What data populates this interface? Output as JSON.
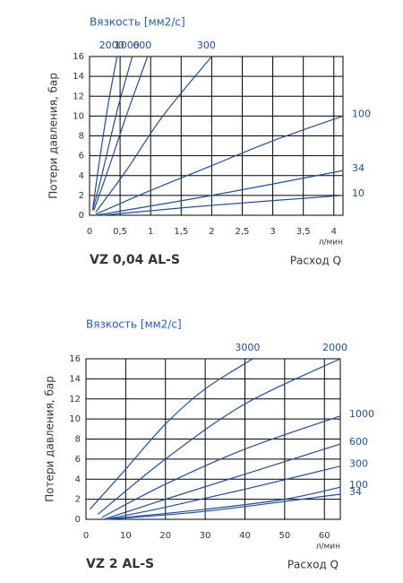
{
  "chart_data": [
    {
      "type": "line",
      "subtitle": "Вязкость [мм2/с]",
      "title": "VZ 0,04 AL-S",
      "y_label": "Потери  давления, бар",
      "x_label": "Расход Q",
      "x_unit": "л/мин",
      "xlim": [
        0,
        4.15
      ],
      "ylim": [
        0,
        16
      ],
      "grid": true,
      "xticks": [
        0,
        {
          "value": 0.5,
          "label": "0,5"
        },
        1,
        {
          "value": 1.5,
          "label": "1,5"
        },
        2,
        {
          "value": 2.5,
          "label": "2,5"
        },
        3,
        {
          "value": 3.5,
          "label": "3,5"
        },
        4
      ],
      "yticks": [
        0,
        2,
        4,
        6,
        8,
        10,
        12,
        14,
        16
      ],
      "series": [
        {
          "name": "2000",
          "color": "#1f4e9c",
          "x": [
            0.05,
            0.15,
            0.3,
            0.45
          ],
          "values": [
            0.5,
            5,
            11,
            16
          ]
        },
        {
          "name": "1000",
          "color": "#1f4e9c",
          "x": [
            0.05,
            0.2,
            0.45,
            0.7
          ],
          "values": [
            0.5,
            4,
            10.5,
            16
          ]
        },
        {
          "name": "600",
          "color": "#1f4e9c",
          "x": [
            0.07,
            0.3,
            0.6,
            0.95
          ],
          "values": [
            0.5,
            4.5,
            10,
            16
          ]
        },
        {
          "name": "300",
          "color": "#1f4e9c",
          "x": [
            0.1,
            0.6,
            1.2,
            2.0
          ],
          "values": [
            0.3,
            4.5,
            10,
            16
          ]
        },
        {
          "name": "100",
          "color": "#1f4e9c",
          "x": [
            0.1,
            1,
            2,
            3,
            4.15
          ],
          "values": [
            0.1,
            2.5,
            5,
            7.5,
            10
          ]
        },
        {
          "name": "34",
          "color": "#1f4e9c",
          "x": [
            0.1,
            2,
            4.15
          ],
          "values": [
            0,
            2,
            4.5
          ]
        },
        {
          "name": "10",
          "color": "#1f4e9c",
          "x": [
            0.2,
            2,
            4.15
          ],
          "values": [
            0,
            1,
            2
          ]
        }
      ]
    },
    {
      "type": "line",
      "subtitle": "Вязкость [мм2/с]",
      "title": "VZ 2 AL-S",
      "y_label": "Потери  давления, бар",
      "x_label": "Расход Q",
      "x_unit": "л/мин",
      "xlim": [
        0,
        64
      ],
      "ylim": [
        0,
        16
      ],
      "grid": true,
      "xticks": [
        0,
        10,
        20,
        30,
        40,
        50,
        60
      ],
      "yticks": [
        0,
        2,
        4,
        6,
        8,
        10,
        12,
        14,
        16
      ],
      "series": [
        {
          "name": "3000",
          "color": "#1f4e9c",
          "x": [
            1,
            10,
            20,
            30,
            42
          ],
          "values": [
            1,
            5,
            9.5,
            13,
            16
          ]
        },
        {
          "name": "2000",
          "color": "#1f4e9c",
          "x": [
            3,
            20,
            40,
            64
          ],
          "values": [
            0.5,
            6,
            11.5,
            16
          ]
        },
        {
          "name": "1000",
          "color": "#1f4e9c",
          "x": [
            4,
            20,
            40,
            64
          ],
          "values": [
            0.2,
            3.5,
            7,
            10.3
          ]
        },
        {
          "name": "600",
          "color": "#1f4e9c",
          "x": [
            4.5,
            20,
            40,
            64
          ],
          "values": [
            0,
            2,
            4.5,
            7.5
          ]
        },
        {
          "name": "300",
          "color": "#1f4e9c",
          "x": [
            5,
            20,
            40,
            64
          ],
          "values": [
            0,
            1.2,
            3,
            5.3
          ]
        },
        {
          "name": "100",
          "color": "#1f4e9c",
          "x": [
            5,
            30,
            50,
            64
          ],
          "values": [
            0,
            1,
            2,
            3.2
          ]
        },
        {
          "name": "34",
          "color": "#1f4e9c",
          "x": [
            5,
            30,
            64
          ],
          "values": [
            0,
            0.8,
            2.5
          ]
        }
      ]
    }
  ]
}
